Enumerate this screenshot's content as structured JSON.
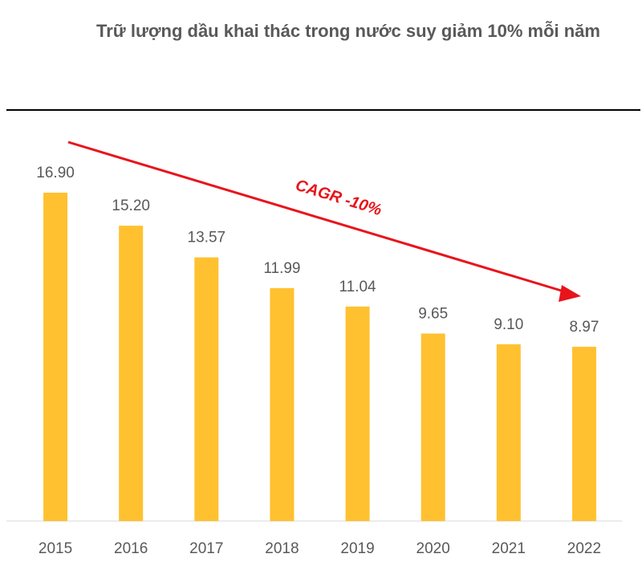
{
  "chart_data": {
    "type": "bar",
    "title": "Trữ lượng dầu khai thác trong nước suy giảm 10% mỗi năm",
    "categories": [
      "2015",
      "2016",
      "2017",
      "2018",
      "2019",
      "2020",
      "2021",
      "2022"
    ],
    "values": [
      16.9,
      15.2,
      13.57,
      11.99,
      11.04,
      9.65,
      9.1,
      8.97
    ],
    "value_labels": [
      "16.90",
      "15.20",
      "13.57",
      "11.99",
      "11.04",
      "9.65",
      "9.10",
      "8.97"
    ],
    "ylim": [
      0,
      17
    ],
    "grid": false,
    "legend": "none",
    "bar_color": "#FFC130",
    "annotation": {
      "text": "CAGR -10%",
      "color": "#E8141B"
    }
  }
}
